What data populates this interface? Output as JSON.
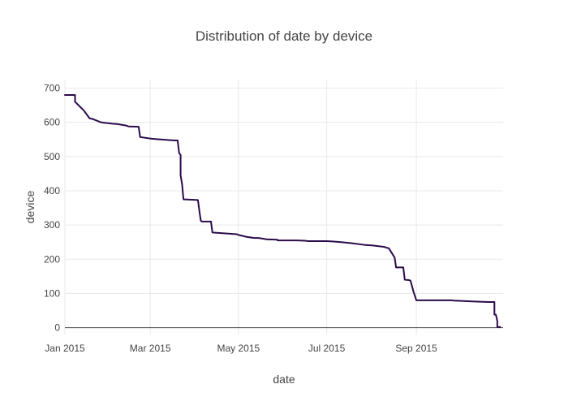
{
  "colors": {
    "line": "#2b0a4a",
    "grid": "#e9e9e9",
    "axis": "#444444",
    "text": "#444444"
  },
  "chart_data": {
    "type": "line",
    "title": "Distribution of date by device",
    "xlabel": "date",
    "ylabel": "device",
    "xlim": [
      "2015-01-01",
      "2015-10-31"
    ],
    "ylim": [
      -20,
      725
    ],
    "grid": true,
    "x_ticks": [
      {
        "date": "2015-01-01",
        "label": "Jan 2015"
      },
      {
        "date": "2015-03-01",
        "label": "Mar 2015"
      },
      {
        "date": "2015-05-01",
        "label": "May 2015"
      },
      {
        "date": "2015-07-01",
        "label": "Jul 2015"
      },
      {
        "date": "2015-09-01",
        "label": "Sep 2015"
      }
    ],
    "y_ticks": [
      0,
      100,
      200,
      300,
      400,
      500,
      600,
      700
    ],
    "series": [
      {
        "x": [
          "2015-01-01",
          "2015-01-08",
          "2015-01-08",
          "2015-01-14",
          "2015-01-14",
          "2015-01-18",
          "2015-01-20",
          "2015-01-26",
          "2015-02-03",
          "2015-02-06",
          "2015-02-12",
          "2015-02-14",
          "2015-02-21",
          "2015-02-22",
          "2015-03-02",
          "2015-03-08",
          "2015-03-18",
          "2015-03-20",
          "2015-03-20",
          "2015-03-21",
          "2015-03-22",
          "2015-03-22",
          "2015-03-23",
          "2015-03-24",
          "2015-03-24",
          "2015-04-03",
          "2015-04-04",
          "2015-04-05",
          "2015-04-06",
          "2015-04-12",
          "2015-04-13",
          "2015-04-20",
          "2015-04-30",
          "2015-05-01",
          "2015-05-04",
          "2015-05-07",
          "2015-05-12",
          "2015-05-15",
          "2015-05-21",
          "2015-05-22",
          "2015-05-28",
          "2015-05-28",
          "2015-06-10",
          "2015-06-16",
          "2015-06-18",
          "2015-07-01",
          "2015-07-05",
          "2015-07-11",
          "2015-07-18",
          "2015-07-27",
          "2015-08-02",
          "2015-08-10",
          "2015-08-11",
          "2015-08-12",
          "2015-08-12",
          "2015-08-13",
          "2015-08-17",
          "2015-08-18",
          "2015-08-20",
          "2015-08-23",
          "2015-08-24",
          "2015-08-27",
          "2015-08-28",
          "2015-08-30",
          "2015-09-01",
          "2015-09-25",
          "2015-09-27",
          "2015-10-13",
          "2015-10-21",
          "2015-10-25",
          "2015-10-25",
          "2015-10-26",
          "2015-10-27",
          "2015-10-27",
          "2015-10-29"
        ],
        "y": [
          680,
          680,
          660,
          635,
          635,
          612,
          610,
          600,
          596,
          595,
          591,
          588,
          587,
          557,
          552,
          550,
          547,
          547,
          545,
          510,
          505,
          445,
          420,
          375,
          375,
          373,
          340,
          312,
          310,
          310,
          278,
          276,
          273,
          271,
          268,
          265,
          262,
          262,
          258,
          258,
          257,
          255,
          255,
          254,
          253,
          253,
          252,
          250,
          247,
          242,
          240,
          236,
          234,
          233,
          233,
          232,
          205,
          176,
          176,
          176,
          140,
          139,
          137,
          106,
          80,
          80,
          79,
          76,
          75,
          75,
          38,
          38,
          20,
          2,
          2
        ]
      }
    ]
  }
}
